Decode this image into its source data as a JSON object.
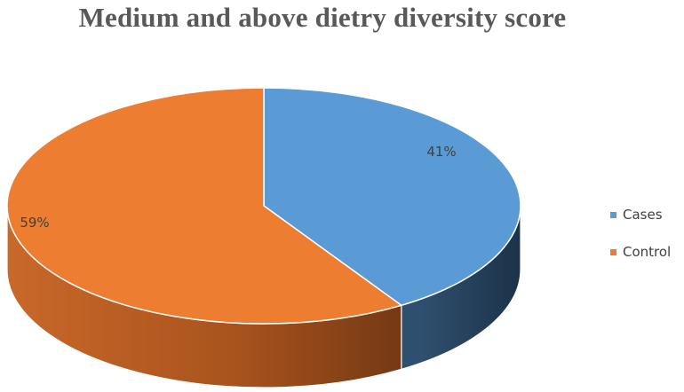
{
  "chart_data": {
    "type": "pie",
    "title": "Medium and above dietry diversity score",
    "categories": [
      "Cases",
      "Control"
    ],
    "values": [
      41,
      59
    ],
    "data_labels": [
      "41%",
      "59%"
    ],
    "colors": [
      "#5b9bd5",
      "#ed7d31"
    ],
    "legend_position": "right",
    "style": "3d"
  }
}
